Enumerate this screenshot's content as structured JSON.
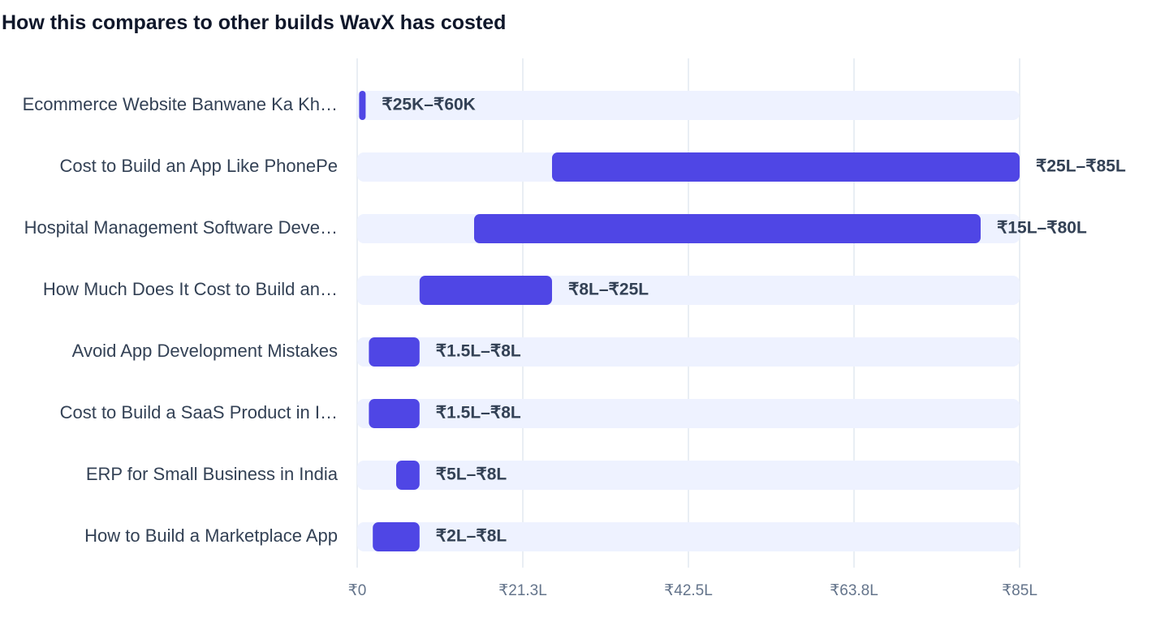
{
  "chart_data": {
    "type": "bar",
    "orientation": "horizontal-range",
    "title": "How this compares to other builds WavX has costed",
    "xlim": [
      0,
      85
    ],
    "x_unit": "₹ Lakh",
    "grid": true,
    "colors": {
      "bar": "#4f46e5",
      "track": "#eef2ff",
      "grid": "#e2e8f0",
      "label": "#334155",
      "tick": "#64748b"
    },
    "x_ticks": [
      {
        "value": 0,
        "label": "₹0"
      },
      {
        "value": 21.25,
        "label": "₹21.3L"
      },
      {
        "value": 42.5,
        "label": "₹42.5L"
      },
      {
        "value": 63.75,
        "label": "₹63.8L"
      },
      {
        "value": 85,
        "label": "₹85L"
      }
    ],
    "rows": [
      {
        "category": "Ecommerce Website Banwane Ka Kh…",
        "low": 0.25,
        "high": 0.6,
        "label": "₹25K–₹60K"
      },
      {
        "category": "Cost to Build an App Like PhonePe",
        "low": 25,
        "high": 85,
        "label": "₹25L–₹85L"
      },
      {
        "category": "Hospital Management Software Deve…",
        "low": 15,
        "high": 80,
        "label": "₹15L–₹80L"
      },
      {
        "category": "How Much Does It Cost to Build an…",
        "low": 8,
        "high": 25,
        "label": "₹8L–₹25L"
      },
      {
        "category": "Avoid App Development Mistakes",
        "low": 1.5,
        "high": 8,
        "label": "₹1.5L–₹8L"
      },
      {
        "category": "Cost to Build a SaaS Product in I…",
        "low": 1.5,
        "high": 8,
        "label": "₹1.5L–₹8L"
      },
      {
        "category": "ERP for Small Business in India",
        "low": 5,
        "high": 8,
        "label": "₹5L–₹8L"
      },
      {
        "category": "How to Build a Marketplace App",
        "low": 2,
        "high": 8,
        "label": "₹2L–₹8L"
      }
    ]
  }
}
